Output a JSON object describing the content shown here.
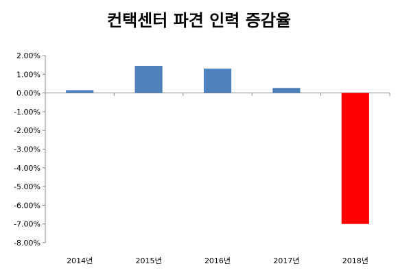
{
  "chart_data": {
    "type": "bar",
    "title": "컨택센터 파견 인력 증감율",
    "xlabel": "",
    "ylabel": "",
    "categories": [
      "2014년",
      "2015년",
      "2016년",
      "2017년",
      "2018년"
    ],
    "values": [
      0.15,
      1.45,
      1.3,
      0.27,
      -7.0
    ],
    "ylim": [
      -8,
      2
    ],
    "yticks": [
      2,
      1,
      0,
      -1,
      -2,
      -3,
      -4,
      -5,
      -6,
      -7,
      -8
    ],
    "ytick_labels": [
      "2.00%",
      "1.00%",
      "0.00%",
      "-1.00%",
      "-2.00%",
      "-3.00%",
      "-4.00%",
      "-5.00%",
      "-6.00%",
      "-7.00%",
      "-8.00%"
    ],
    "grid": false,
    "legend": "none",
    "colors": {
      "bar": "#4f81bd",
      "highlight": "#ff0000",
      "axis": "#868686"
    },
    "highlight_index": 4
  }
}
